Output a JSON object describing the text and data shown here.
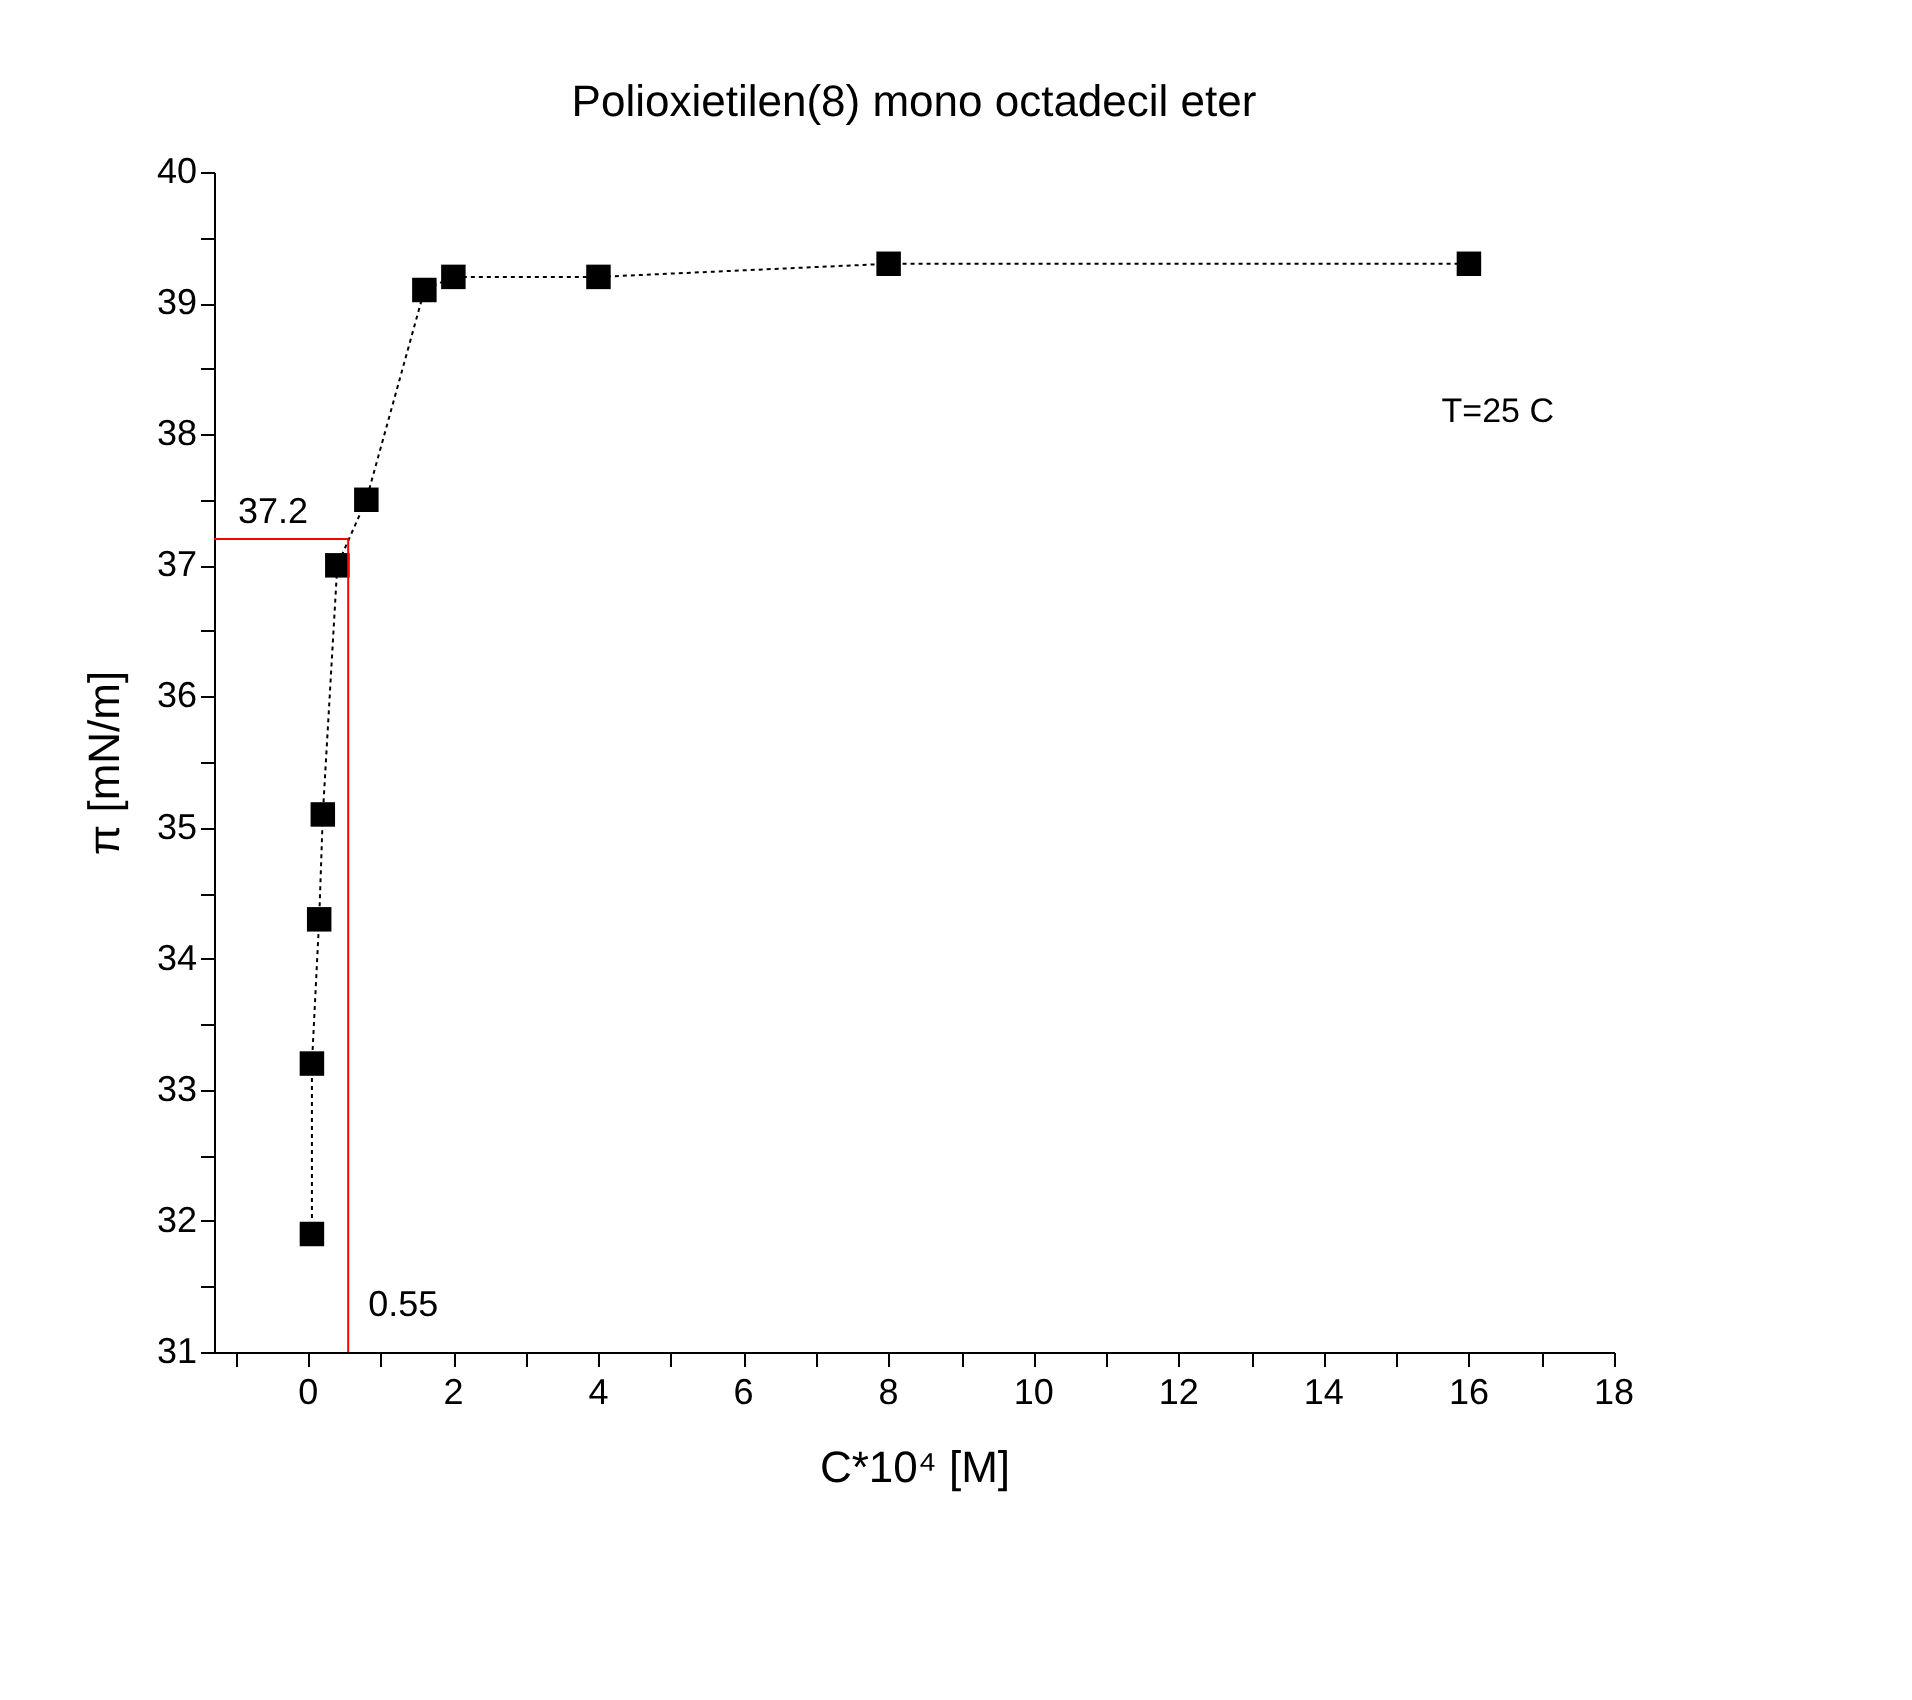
{
  "chart_data": {
    "type": "line",
    "title": "Polioxietilen(8) mono octadecil eter",
    "xlabel": "C*10⁴ [M]",
    "ylabel": "π [mN/m]",
    "x": [
      0.05,
      0.05,
      0.15,
      0.2,
      0.4,
      0.8,
      1.6,
      2.0,
      4.0,
      8.0,
      16.0
    ],
    "series": [
      {
        "color": "#000000",
        "values": [
          31.9,
          33.2,
          34.3,
          35.1,
          37.0,
          37.5,
          39.1,
          39.2,
          39.2,
          39.3,
          39.3
        ]
      }
    ],
    "marker": "square",
    "line_style": "dotted",
    "xlim": [
      -1.3,
      18
    ],
    "ylim": [
      31,
      40
    ],
    "xticks": [
      {
        "value": -1,
        "label": null
      },
      0,
      {
        "value": 1,
        "label": null
      },
      2,
      {
        "value": 3,
        "label": null
      },
      4,
      {
        "value": 5,
        "label": null
      },
      6,
      {
        "value": 7,
        "label": null
      },
      8,
      {
        "value": 9,
        "label": null
      },
      10,
      {
        "value": 11,
        "label": null
      },
      12,
      {
        "value": 13,
        "label": null
      },
      14,
      {
        "value": 15,
        "label": null
      },
      16,
      {
        "value": 17,
        "label": null
      },
      18
    ],
    "yticks": [
      31,
      {
        "value": 31.5,
        "label": null
      },
      32,
      {
        "value": 32.5,
        "label": null
      },
      33,
      {
        "value": 33.5,
        "label": null
      },
      34,
      {
        "value": 34.5,
        "label": null
      },
      35,
      {
        "value": 35.5,
        "label": null
      },
      36,
      {
        "value": 36.5,
        "label": null
      },
      37,
      {
        "value": 37.5,
        "label": null
      },
      38,
      {
        "value": 38.5,
        "label": null
      },
      39,
      {
        "value": 39.5,
        "label": null
      },
      40
    ],
    "ref_lines": [
      {
        "axis": "y",
        "value": 37.2,
        "label": "37.2",
        "color": "#ff0000"
      },
      {
        "axis": "x",
        "value": 0.55,
        "label": "0.55",
        "color": "#ff0000"
      }
    ],
    "annotations": [
      "T=25 C"
    ],
    "grid": false
  }
}
